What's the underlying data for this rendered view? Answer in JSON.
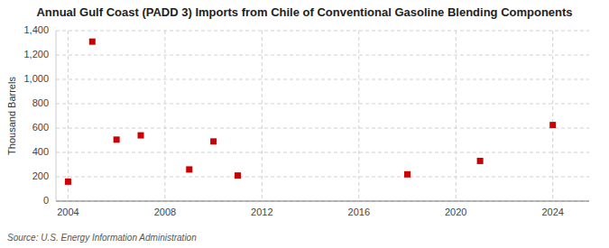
{
  "chart_data": {
    "type": "scatter",
    "title": "Annual Gulf Coast (PADD 3) Imports from Chile of Conventional Gasoline Blending Components",
    "ylabel": "Thousand Barrels",
    "source": "Source: U.S. Energy Information Administration",
    "x": [
      2004,
      2005,
      2006,
      2007,
      2009,
      2010,
      2011,
      2018,
      2021,
      2024
    ],
    "values": [
      160,
      1310,
      505,
      540,
      260,
      490,
      210,
      220,
      330,
      625
    ],
    "color": "#cc0000",
    "marker": "square",
    "xlim": [
      2003.5,
      2025.5
    ],
    "xticks": [
      2004,
      2008,
      2012,
      2016,
      2020,
      2024
    ],
    "ylim": [
      0,
      1400
    ],
    "yticks": [
      0,
      200,
      400,
      600,
      800,
      {
        "value": 1000,
        "label": "1,000"
      },
      {
        "value": 1200,
        "label": "1,200"
      },
      {
        "value": 1400,
        "label": "1,400"
      }
    ],
    "grid": true
  }
}
